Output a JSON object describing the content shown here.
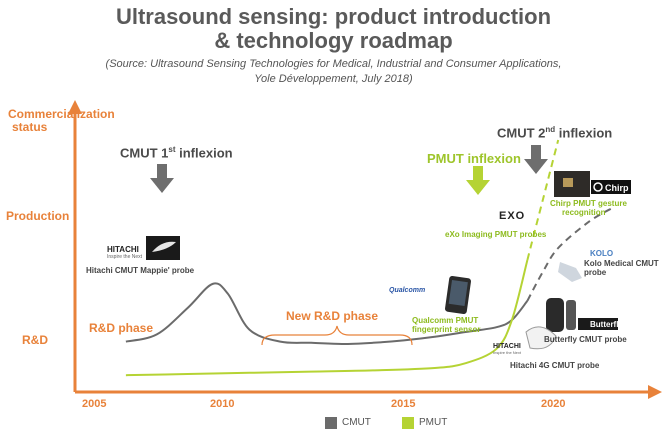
{
  "title_line1": "Ultrasound sensing: product introduction",
  "title_line2": "& technology roadmap",
  "source_line1": "(Source: Ultrasound Sensing Technologies for Medical, Industrial and Consumer Applications,",
  "source_line2": "Yole Développement, July 2018)",
  "colors": {
    "cmut": "#6b6b6b",
    "pmut": "#b5d334",
    "axis": "#e8823a",
    "pmut_text": "#9ec52b"
  },
  "chart_data": {
    "type": "line",
    "title": "Ultrasound sensing: product introduction & technology roadmap",
    "xlabel": "",
    "ylabel": "Commercialization status",
    "xlim": [
      2005,
      2022
    ],
    "x_ticks": [
      "2005",
      "2010",
      "2015",
      "2020"
    ],
    "y_levels": [
      "R&D",
      "Production"
    ],
    "series": [
      {
        "name": "CMUT",
        "color": "#6b6b6b",
        "x": [
          2006,
          2007,
          2008,
          2008.8,
          2009.3,
          2010,
          2011,
          2012,
          2013,
          2014,
          2015,
          2016,
          2017,
          2018,
          2018.5,
          2019,
          2019.5,
          2020,
          2021,
          2021.8
        ],
        "y": [
          0.16,
          0.19,
          0.3,
          0.4,
          0.36,
          0.21,
          0.16,
          0.155,
          0.15,
          0.155,
          0.165,
          0.18,
          0.2,
          0.22,
          0.25,
          0.33,
          0.45,
          0.55,
          0.66,
          0.72
        ]
      },
      {
        "name": "PMUT",
        "color": "#b5d334",
        "x": [
          2006,
          2008,
          2010,
          2012,
          2014,
          2016,
          2017,
          2018,
          2018.5,
          2019,
          2019.5,
          2020
        ],
        "y": [
          0.02,
          0.025,
          0.03,
          0.035,
          0.04,
          0.05,
          0.07,
          0.13,
          0.25,
          0.5,
          0.75,
          1.0
        ]
      }
    ],
    "annotations": {
      "cmut_first": {
        "label_main": "CMUT 1",
        "label_sup": "st",
        "label_end": " inflexion"
      },
      "cmut_second": {
        "label_main": "CMUT 2",
        "label_sup": "nd",
        "label_end": " inflexion"
      },
      "pmut": "PMUT inflexion",
      "rd_phase": "R&D phase",
      "new_rd_phase": "New R&D phase"
    },
    "legend": [
      {
        "name": "CMUT",
        "color": "#6b6b6b"
      },
      {
        "name": "PMUT",
        "color": "#b5d334"
      }
    ],
    "legend_position": "bottom-center"
  },
  "axis_labels": {
    "y_title_1": "Commercialization",
    "y_title_2": "status",
    "production": "Production",
    "rd": "R&D"
  },
  "products": {
    "hitachi_mappie": {
      "logo_main": "HITACHI",
      "logo_sub": "Inspire the Next",
      "caption": "Hitachi CMUT Mappie' probe"
    },
    "qualcomm": {
      "logo": "Qualcomm",
      "caption_1": "Qualcomm PMUT",
      "caption_2": "fingerprint sensor"
    },
    "exo": {
      "logo": "EXO",
      "caption": "eXo Imaging PMUT probes"
    },
    "chirp": {
      "logo": "Chirp",
      "caption_1": "Chirp PMUT gesture",
      "caption_2": "recognition"
    },
    "kolo": {
      "logo": "KOLO",
      "caption_1": "Kolo Medical CMUT",
      "caption_2": "probe"
    },
    "butterfly": {
      "logo": "Butterfly",
      "caption": "Butterfly CMUT probe"
    },
    "hitachi_4g": {
      "logo_main": "HITACHI",
      "logo_sub": "Inspire the Next",
      "caption": "Hitachi 4G CMUT probe"
    }
  }
}
